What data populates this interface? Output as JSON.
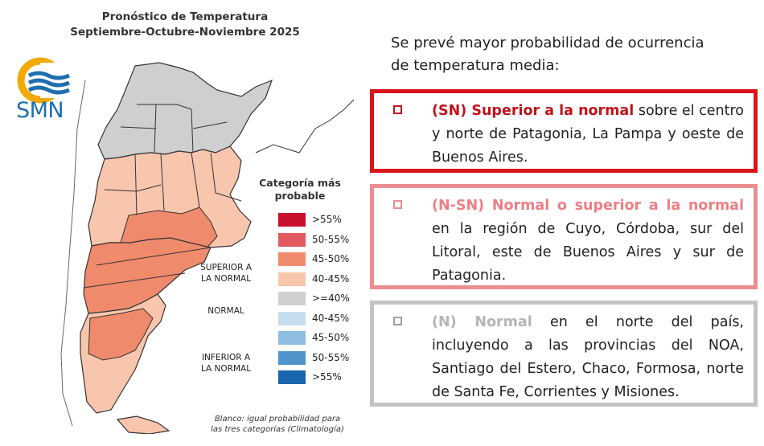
{
  "map": {
    "title_line1": "Pronóstico de Temperatura",
    "title_line2": "Septiembre-Octubre-Noviembre 2025",
    "logo_text": "SMN",
    "legend_title_line1": "Categoría más",
    "legend_title_line2": "probable",
    "legend_items": [
      {
        "label": ">55%",
        "color": "#c8102e"
      },
      {
        "label": "50-55%",
        "color": "#e05a5f"
      },
      {
        "label": "45-50%",
        "color": "#f08a6c"
      },
      {
        "label": "40-45%",
        "color": "#f8c5ad"
      },
      {
        "label": ">=40%",
        "color": "#cfcfcf"
      },
      {
        "label": "40-45%",
        "color": "#c6dcef"
      },
      {
        "label": "45-50%",
        "color": "#8fbde0"
      },
      {
        "label": "50-55%",
        "color": "#4f95cb"
      },
      {
        "label": ">55%",
        "color": "#1a66ad"
      }
    ],
    "group_superior_line1": "SUPERIOR A",
    "group_superior_line2": "LA NORMAL",
    "group_normal": "NORMAL",
    "group_inferior_line1": "INFERIOR A",
    "group_inferior_line2": "LA NORMAL",
    "note_line1": "Blanco: igual probabilidad para",
    "note_line2": "las tres categorías (Climatología)",
    "colors": {
      "normal_gray": "#cfcfcf",
      "light_salmon": "#f8c5ad",
      "salmon": "#f08a6c",
      "border": "#333333"
    }
  },
  "text_panel": {
    "intro_line1": "Se prevé mayor probabilidad de ocurrencia",
    "intro_line2": "de temperatura media:",
    "box1": {
      "keyword": "(SN) Superior a la normal",
      "text": " sobre el centro y norte de Patagonia, La Pampa y oeste de Buenos Aires.",
      "border_color": "#d9141b"
    },
    "box2": {
      "keyword": "(N-SN) Normal o superior a la normal",
      "text": " en la región de Cuyo, Córdoba, sur del Litoral, este de Buenos Aires y sur de Patagonia.",
      "border_color": "#ec8d92"
    },
    "box3": {
      "keyword": "(N) Normal",
      "text": " en el norte del país, incluyendo a las provincias del NOA, Santiago del Estero, Chaco, Formosa, norte de Santa Fe, Corrientes y Misiones.",
      "border_color": "#c3c3c3"
    }
  }
}
